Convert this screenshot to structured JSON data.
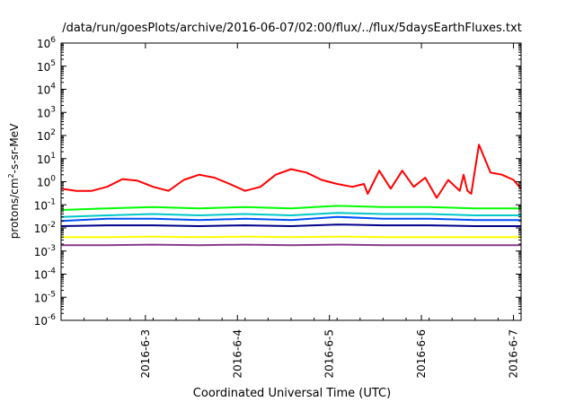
{
  "chart_data": {
    "type": "line",
    "title": "/data/run/goesPlots/archive/2016-06-07/02:00/flux/../flux/5daysEarthFluxes.txt",
    "xlabel": "Coordinated Universal Time (UTC)",
    "ylabel": {
      "base": "protons/cm",
      "sup": "2",
      "rest": "-s-sr-MeV"
    },
    "x_range": [
      "2016-06-02 02:00",
      "2016-06-07 02:00"
    ],
    "x_ticks": [
      "2016-6-3",
      "2016-6-4",
      "2016-6-5",
      "2016-6-6",
      "2016-6-7"
    ],
    "y_scale": "log",
    "ylim": [
      1e-06,
      1000000.0
    ],
    "y_ticks": [
      {
        "base": "10",
        "exp": "6"
      },
      {
        "base": "10",
        "exp": "5"
      },
      {
        "base": "10",
        "exp": "4"
      },
      {
        "base": "10",
        "exp": "3"
      },
      {
        "base": "10",
        "exp": "2"
      },
      {
        "base": "10",
        "exp": "1"
      },
      {
        "base": "10",
        "exp": "0"
      },
      {
        "base": "10",
        "exp": "-1"
      },
      {
        "base": "10",
        "exp": "-2"
      },
      {
        "base": "10",
        "exp": "-3"
      },
      {
        "base": "10",
        "exp": "-4"
      },
      {
        "base": "10",
        "exp": "-5"
      },
      {
        "base": "10",
        "exp": "-6"
      }
    ],
    "grid": false,
    "legend": "none",
    "series": [
      {
        "color": "#ff0000",
        "x": [
          "2016-06-02 02:00",
          "2016-06-02 06:00",
          "2016-06-02 10:00",
          "2016-06-02 14:00",
          "2016-06-02 18:00",
          "2016-06-02 22:00",
          "2016-06-03 02:00",
          "2016-06-03 06:00",
          "2016-06-03 10:00",
          "2016-06-03 14:00",
          "2016-06-03 18:00",
          "2016-06-03 22:00",
          "2016-06-04 02:00",
          "2016-06-04 06:00",
          "2016-06-04 10:00",
          "2016-06-04 14:00",
          "2016-06-04 18:00",
          "2016-06-04 22:00",
          "2016-06-05 02:00",
          "2016-06-05 06:00",
          "2016-06-05 09:00",
          "2016-06-05 10:00",
          "2016-06-05 13:00",
          "2016-06-05 16:00",
          "2016-06-05 19:00",
          "2016-06-05 22:00",
          "2016-06-06 01:00",
          "2016-06-06 04:00",
          "2016-06-06 07:00",
          "2016-06-06 10:00",
          "2016-06-06 11:00",
          "2016-06-06 12:00",
          "2016-06-06 13:00",
          "2016-06-06 15:00",
          "2016-06-06 18:00",
          "2016-06-06 21:00",
          "2016-06-07 00:00",
          "2016-06-07 02:00"
        ],
        "y": [
          0.5,
          0.4,
          0.4,
          0.6,
          1.3,
          1.1,
          0.6,
          0.4,
          1.2,
          2.0,
          1.5,
          0.8,
          0.4,
          0.6,
          2.0,
          3.5,
          2.5,
          1.2,
          0.8,
          0.6,
          0.8,
          0.3,
          3.0,
          0.5,
          3.0,
          0.6,
          1.5,
          0.2,
          1.2,
          0.4,
          2.0,
          0.4,
          0.3,
          40,
          2.5,
          2.0,
          1.2,
          0.5
        ]
      },
      {
        "color": "#00ff00",
        "x": [
          "2016-06-02 02:00",
          "2016-06-02 14:00",
          "2016-06-03 02:00",
          "2016-06-03 14:00",
          "2016-06-04 02:00",
          "2016-06-04 14:00",
          "2016-06-05 02:00",
          "2016-06-05 14:00",
          "2016-06-06 02:00",
          "2016-06-06 14:00",
          "2016-06-07 02:00"
        ],
        "y": [
          0.06,
          0.07,
          0.08,
          0.07,
          0.08,
          0.07,
          0.09,
          0.08,
          0.08,
          0.07,
          0.07
        ]
      },
      {
        "color": "#00c8c8",
        "x": [
          "2016-06-02 02:00",
          "2016-06-02 14:00",
          "2016-06-03 02:00",
          "2016-06-03 14:00",
          "2016-06-04 02:00",
          "2016-06-04 14:00",
          "2016-06-05 02:00",
          "2016-06-05 14:00",
          "2016-06-06 02:00",
          "2016-06-06 14:00",
          "2016-06-07 02:00"
        ],
        "y": [
          0.03,
          0.035,
          0.04,
          0.035,
          0.04,
          0.035,
          0.045,
          0.04,
          0.04,
          0.035,
          0.035
        ]
      },
      {
        "color": "#0050ff",
        "x": [
          "2016-06-02 02:00",
          "2016-06-02 14:00",
          "2016-06-03 02:00",
          "2016-06-03 14:00",
          "2016-06-04 02:00",
          "2016-06-04 14:00",
          "2016-06-05 02:00",
          "2016-06-05 14:00",
          "2016-06-06 02:00",
          "2016-06-06 14:00",
          "2016-06-07 02:00"
        ],
        "y": [
          0.02,
          0.025,
          0.025,
          0.022,
          0.025,
          0.022,
          0.03,
          0.025,
          0.025,
          0.022,
          0.022
        ]
      },
      {
        "color": "#00008b",
        "x": [
          "2016-06-02 02:00",
          "2016-06-02 14:00",
          "2016-06-03 02:00",
          "2016-06-03 14:00",
          "2016-06-04 02:00",
          "2016-06-04 14:00",
          "2016-06-05 02:00",
          "2016-06-05 14:00",
          "2016-06-06 02:00",
          "2016-06-06 14:00",
          "2016-06-07 02:00"
        ],
        "y": [
          0.012,
          0.013,
          0.013,
          0.012,
          0.013,
          0.012,
          0.014,
          0.013,
          0.013,
          0.012,
          0.012
        ]
      },
      {
        "color": "#ffff00",
        "x": [
          "2016-06-02 02:00",
          "2016-06-02 14:00",
          "2016-06-03 02:00",
          "2016-06-03 14:00",
          "2016-06-04 02:00",
          "2016-06-04 14:00",
          "2016-06-05 02:00",
          "2016-06-05 14:00",
          "2016-06-06 02:00",
          "2016-06-06 14:00",
          "2016-06-07 02:00"
        ],
        "y": [
          0.004,
          0.004,
          0.0042,
          0.004,
          0.0042,
          0.004,
          0.0042,
          0.004,
          0.004,
          0.004,
          0.004
        ]
      },
      {
        "color": "#8b3a8b",
        "x": [
          "2016-06-02 02:00",
          "2016-06-02 14:00",
          "2016-06-03 02:00",
          "2016-06-03 14:00",
          "2016-06-04 02:00",
          "2016-06-04 14:00",
          "2016-06-05 02:00",
          "2016-06-05 14:00",
          "2016-06-06 02:00",
          "2016-06-06 14:00",
          "2016-06-07 02:00"
        ],
        "y": [
          0.0018,
          0.0018,
          0.0019,
          0.0018,
          0.0019,
          0.0018,
          0.0019,
          0.0018,
          0.0018,
          0.0018,
          0.0018
        ]
      }
    ]
  }
}
